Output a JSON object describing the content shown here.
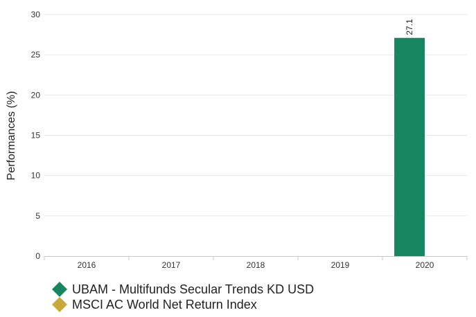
{
  "chart_data": {
    "type": "bar",
    "categories": [
      "2016",
      "2017",
      "2018",
      "2019",
      "2020"
    ],
    "series": [
      {
        "name": "UBAM - Multifunds Secular Trends KD USD",
        "values": [
          null,
          null,
          null,
          null,
          27.1
        ],
        "color": "#17855f",
        "data_labels": [
          null,
          null,
          null,
          null,
          "27.1"
        ]
      },
      {
        "name": "MSCI AC World Net Return Index",
        "values": [
          null,
          null,
          null,
          null,
          null
        ],
        "color": "#c8aa3b"
      }
    ],
    "ylabel": "Performances (%)",
    "xlabel": "",
    "ylim": [
      0,
      30
    ],
    "yticks": [
      0,
      5,
      10,
      15,
      20,
      25,
      30
    ],
    "grid": true,
    "legend_position": "bottom-left",
    "legend_marker": "diamond"
  }
}
